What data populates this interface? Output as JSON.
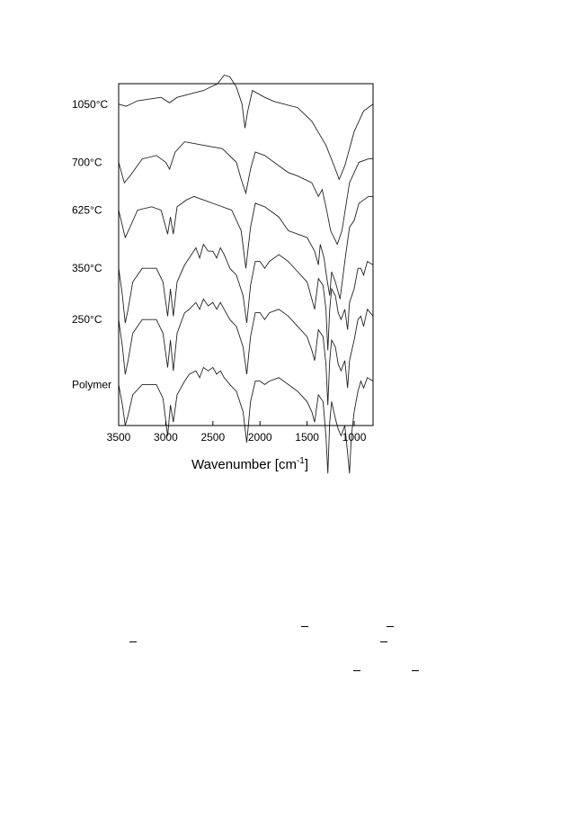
{
  "chart_data": {
    "type": "line",
    "title": "",
    "xlabel": "Wavenumber [cm",
    "xlabel_sup": "-1",
    "xlabel_close": "]",
    "ylabel": "",
    "xlim": [
      3500,
      800
    ],
    "x_reversed": true,
    "x_ticks": [
      3500,
      3000,
      2500,
      2000,
      1500,
      1000
    ],
    "x_tick_labels": [
      "3500",
      "3000",
      "2500",
      "2000",
      "1500",
      "1000"
    ],
    "grid": false,
    "y_ticks_shown": false,
    "series": [
      {
        "name": "1050°C",
        "baseline": 0.94,
        "points": [
          [
            3500,
            0.0
          ],
          [
            3420,
            -0.006
          ],
          [
            3300,
            0.01
          ],
          [
            3050,
            0.02
          ],
          [
            2960,
            0.004
          ],
          [
            2880,
            0.02
          ],
          [
            2600,
            0.04
          ],
          [
            2450,
            0.06
          ],
          [
            2380,
            0.085
          ],
          [
            2320,
            0.08
          ],
          [
            2250,
            0.05
          ],
          [
            2190,
            0.0
          ],
          [
            2160,
            -0.07
          ],
          [
            2130,
            -0.02
          ],
          [
            2080,
            0.04
          ],
          [
            1950,
            0.02
          ],
          [
            1850,
            0.008
          ],
          [
            1600,
            -0.01
          ],
          [
            1450,
            -0.05
          ],
          [
            1300,
            -0.12
          ],
          [
            1200,
            -0.19
          ],
          [
            1160,
            -0.22
          ],
          [
            1100,
            -0.18
          ],
          [
            1000,
            -0.08
          ],
          [
            900,
            -0.02
          ],
          [
            800,
            0.0
          ]
        ]
      },
      {
        "name": "700°C",
        "baseline": 0.77,
        "points": [
          [
            3500,
            0.0
          ],
          [
            3440,
            -0.06
          ],
          [
            3380,
            -0.04
          ],
          [
            3250,
            0.01
          ],
          [
            3100,
            0.02
          ],
          [
            3000,
            0.0
          ],
          [
            2960,
            -0.02
          ],
          [
            2900,
            0.03
          ],
          [
            2800,
            0.06
          ],
          [
            2600,
            0.05
          ],
          [
            2400,
            0.04
          ],
          [
            2250,
            0.0
          ],
          [
            2200,
            -0.05
          ],
          [
            2150,
            -0.09
          ],
          [
            2100,
            -0.02
          ],
          [
            2050,
            0.03
          ],
          [
            1950,
            0.02
          ],
          [
            1800,
            -0.01
          ],
          [
            1700,
            -0.03
          ],
          [
            1600,
            -0.04
          ],
          [
            1450,
            -0.06
          ],
          [
            1380,
            -0.1
          ],
          [
            1340,
            -0.08
          ],
          [
            1300,
            -0.13
          ],
          [
            1250,
            -0.2
          ],
          [
            1180,
            -0.24
          ],
          [
            1130,
            -0.2
          ],
          [
            1050,
            -0.06
          ],
          [
            950,
            0.0
          ],
          [
            850,
            0.01
          ],
          [
            800,
            0.01
          ]
        ]
      },
      {
        "name": "625°C",
        "baseline": 0.63,
        "points": [
          [
            3500,
            0.0
          ],
          [
            3430,
            -0.08
          ],
          [
            3380,
            -0.05
          ],
          [
            3300,
            0.0
          ],
          [
            3150,
            0.01
          ],
          [
            3050,
            0.0
          ],
          [
            2980,
            -0.07
          ],
          [
            2950,
            -0.02
          ],
          [
            2920,
            -0.07
          ],
          [
            2880,
            0.01
          ],
          [
            2780,
            0.03
          ],
          [
            2700,
            0.04
          ],
          [
            2600,
            0.03
          ],
          [
            2500,
            0.02
          ],
          [
            2300,
            0.0
          ],
          [
            2200,
            -0.06
          ],
          [
            2150,
            -0.17
          ],
          [
            2100,
            -0.05
          ],
          [
            2050,
            0.02
          ],
          [
            1950,
            0.01
          ],
          [
            1800,
            -0.02
          ],
          [
            1700,
            -0.06
          ],
          [
            1600,
            -0.07
          ],
          [
            1500,
            -0.08
          ],
          [
            1420,
            -0.12
          ],
          [
            1380,
            -0.16
          ],
          [
            1360,
            -0.1
          ],
          [
            1320,
            -0.14
          ],
          [
            1290,
            -0.2
          ],
          [
            1260,
            -0.25
          ],
          [
            1240,
            -0.18
          ],
          [
            1200,
            -0.21
          ],
          [
            1150,
            -0.26
          ],
          [
            1100,
            -0.15
          ],
          [
            1050,
            -0.05
          ],
          [
            1000,
            -0.03
          ],
          [
            950,
            0.02
          ],
          [
            850,
            0.04
          ],
          [
            800,
            0.04
          ]
        ]
      },
      {
        "name": "350°C",
        "baseline": 0.46,
        "points": [
          [
            3500,
            0.0
          ],
          [
            3460,
            -0.08
          ],
          [
            3430,
            -0.16
          ],
          [
            3400,
            -0.12
          ],
          [
            3350,
            -0.04
          ],
          [
            3250,
            0.0
          ],
          [
            3100,
            0.0
          ],
          [
            3030,
            -0.04
          ],
          [
            2980,
            -0.14
          ],
          [
            2950,
            -0.06
          ],
          [
            2920,
            -0.14
          ],
          [
            2880,
            -0.04
          ],
          [
            2800,
            0.01
          ],
          [
            2750,
            0.03
          ],
          [
            2680,
            0.06
          ],
          [
            2640,
            0.03
          ],
          [
            2600,
            0.07
          ],
          [
            2550,
            0.05
          ],
          [
            2500,
            0.05
          ],
          [
            2460,
            0.03
          ],
          [
            2420,
            0.06
          ],
          [
            2380,
            0.04
          ],
          [
            2320,
            0.0
          ],
          [
            2250,
            -0.02
          ],
          [
            2180,
            -0.08
          ],
          [
            2140,
            -0.16
          ],
          [
            2100,
            -0.05
          ],
          [
            2050,
            0.02
          ],
          [
            2000,
            0.02
          ],
          [
            1950,
            0.0
          ],
          [
            1900,
            0.02
          ],
          [
            1800,
            0.04
          ],
          [
            1700,
            0.02
          ],
          [
            1600,
            -0.01
          ],
          [
            1500,
            -0.04
          ],
          [
            1450,
            -0.09
          ],
          [
            1420,
            -0.12
          ],
          [
            1380,
            -0.03
          ],
          [
            1330,
            -0.05
          ],
          [
            1300,
            -0.12
          ],
          [
            1280,
            -0.24
          ],
          [
            1260,
            -0.12
          ],
          [
            1240,
            -0.06
          ],
          [
            1200,
            -0.08
          ],
          [
            1170,
            -0.13
          ],
          [
            1140,
            -0.15
          ],
          [
            1100,
            -0.12
          ],
          [
            1070,
            -0.18
          ],
          [
            1050,
            -0.1
          ],
          [
            1000,
            -0.06
          ],
          [
            960,
            0.0
          ],
          [
            930,
            0.0
          ],
          [
            900,
            -0.02
          ],
          [
            860,
            0.02
          ],
          [
            800,
            0.01
          ]
        ]
      },
      {
        "name": "250°C",
        "baseline": 0.31,
        "points": [
          [
            3500,
            0.0
          ],
          [
            3460,
            -0.08
          ],
          [
            3430,
            -0.16
          ],
          [
            3400,
            -0.12
          ],
          [
            3350,
            -0.04
          ],
          [
            3250,
            0.0
          ],
          [
            3100,
            0.0
          ],
          [
            3030,
            -0.04
          ],
          [
            2980,
            -0.14
          ],
          [
            2950,
            -0.06
          ],
          [
            2920,
            -0.15
          ],
          [
            2880,
            -0.04
          ],
          [
            2800,
            0.02
          ],
          [
            2750,
            0.03
          ],
          [
            2680,
            0.05
          ],
          [
            2640,
            0.03
          ],
          [
            2600,
            0.06
          ],
          [
            2550,
            0.04
          ],
          [
            2500,
            0.05
          ],
          [
            2460,
            0.03
          ],
          [
            2420,
            0.05
          ],
          [
            2380,
            0.03
          ],
          [
            2320,
            0.0
          ],
          [
            2250,
            -0.02
          ],
          [
            2180,
            -0.08
          ],
          [
            2140,
            -0.16
          ],
          [
            2100,
            -0.05
          ],
          [
            2050,
            0.02
          ],
          [
            2000,
            0.02
          ],
          [
            1950,
            0.0
          ],
          [
            1900,
            0.02
          ],
          [
            1800,
            0.03
          ],
          [
            1700,
            0.01
          ],
          [
            1600,
            -0.02
          ],
          [
            1500,
            -0.05
          ],
          [
            1450,
            -0.09
          ],
          [
            1420,
            -0.12
          ],
          [
            1380,
            -0.03
          ],
          [
            1330,
            -0.05
          ],
          [
            1300,
            -0.13
          ],
          [
            1280,
            -0.25
          ],
          [
            1260,
            -0.12
          ],
          [
            1240,
            -0.06
          ],
          [
            1200,
            -0.08
          ],
          [
            1170,
            -0.13
          ],
          [
            1140,
            -0.15
          ],
          [
            1100,
            -0.12
          ],
          [
            1070,
            -0.2
          ],
          [
            1050,
            -0.12
          ],
          [
            1000,
            -0.06
          ],
          [
            960,
            0.0
          ],
          [
            930,
            0.01
          ],
          [
            900,
            -0.02
          ],
          [
            860,
            0.03
          ],
          [
            800,
            0.01
          ]
        ]
      },
      {
        "name": "Polymer",
        "baseline": 0.12,
        "points": [
          [
            3500,
            0.0
          ],
          [
            3460,
            -0.06
          ],
          [
            3430,
            -0.12
          ],
          [
            3400,
            -0.09
          ],
          [
            3350,
            -0.03
          ],
          [
            3250,
            0.0
          ],
          [
            3100,
            0.0
          ],
          [
            3030,
            -0.04
          ],
          [
            2980,
            -0.15
          ],
          [
            2950,
            -0.06
          ],
          [
            2920,
            -0.11
          ],
          [
            2880,
            -0.03
          ],
          [
            2800,
            0.01
          ],
          [
            2750,
            0.03
          ],
          [
            2680,
            0.04
          ],
          [
            2640,
            0.02
          ],
          [
            2600,
            0.05
          ],
          [
            2550,
            0.04
          ],
          [
            2500,
            0.05
          ],
          [
            2460,
            0.03
          ],
          [
            2420,
            0.04
          ],
          [
            2380,
            0.02
          ],
          [
            2320,
            0.0
          ],
          [
            2250,
            -0.02
          ],
          [
            2180,
            -0.08
          ],
          [
            2140,
            -0.17
          ],
          [
            2100,
            -0.05
          ],
          [
            2050,
            0.01
          ],
          [
            2000,
            0.01
          ],
          [
            1950,
            0.0
          ],
          [
            1900,
            0.01
          ],
          [
            1800,
            0.02
          ],
          [
            1700,
            0.0
          ],
          [
            1600,
            -0.02
          ],
          [
            1500,
            -0.05
          ],
          [
            1450,
            -0.08
          ],
          [
            1420,
            -0.11
          ],
          [
            1380,
            -0.03
          ],
          [
            1330,
            -0.05
          ],
          [
            1300,
            -0.15
          ],
          [
            1280,
            -0.26
          ],
          [
            1260,
            -0.11
          ],
          [
            1240,
            -0.05
          ],
          [
            1200,
            -0.1
          ],
          [
            1170,
            -0.13
          ],
          [
            1140,
            -0.15
          ],
          [
            1100,
            -0.12
          ],
          [
            1070,
            -0.2
          ],
          [
            1050,
            -0.26
          ],
          [
            1030,
            -0.15
          ],
          [
            1000,
            -0.08
          ],
          [
            960,
            -0.02
          ],
          [
            930,
            0.01
          ],
          [
            900,
            -0.01
          ],
          [
            860,
            0.02
          ],
          [
            800,
            0.01
          ]
        ]
      }
    ]
  },
  "footer_marks": [
    "",
    "",
    "",
    "",
    "",
    ""
  ]
}
